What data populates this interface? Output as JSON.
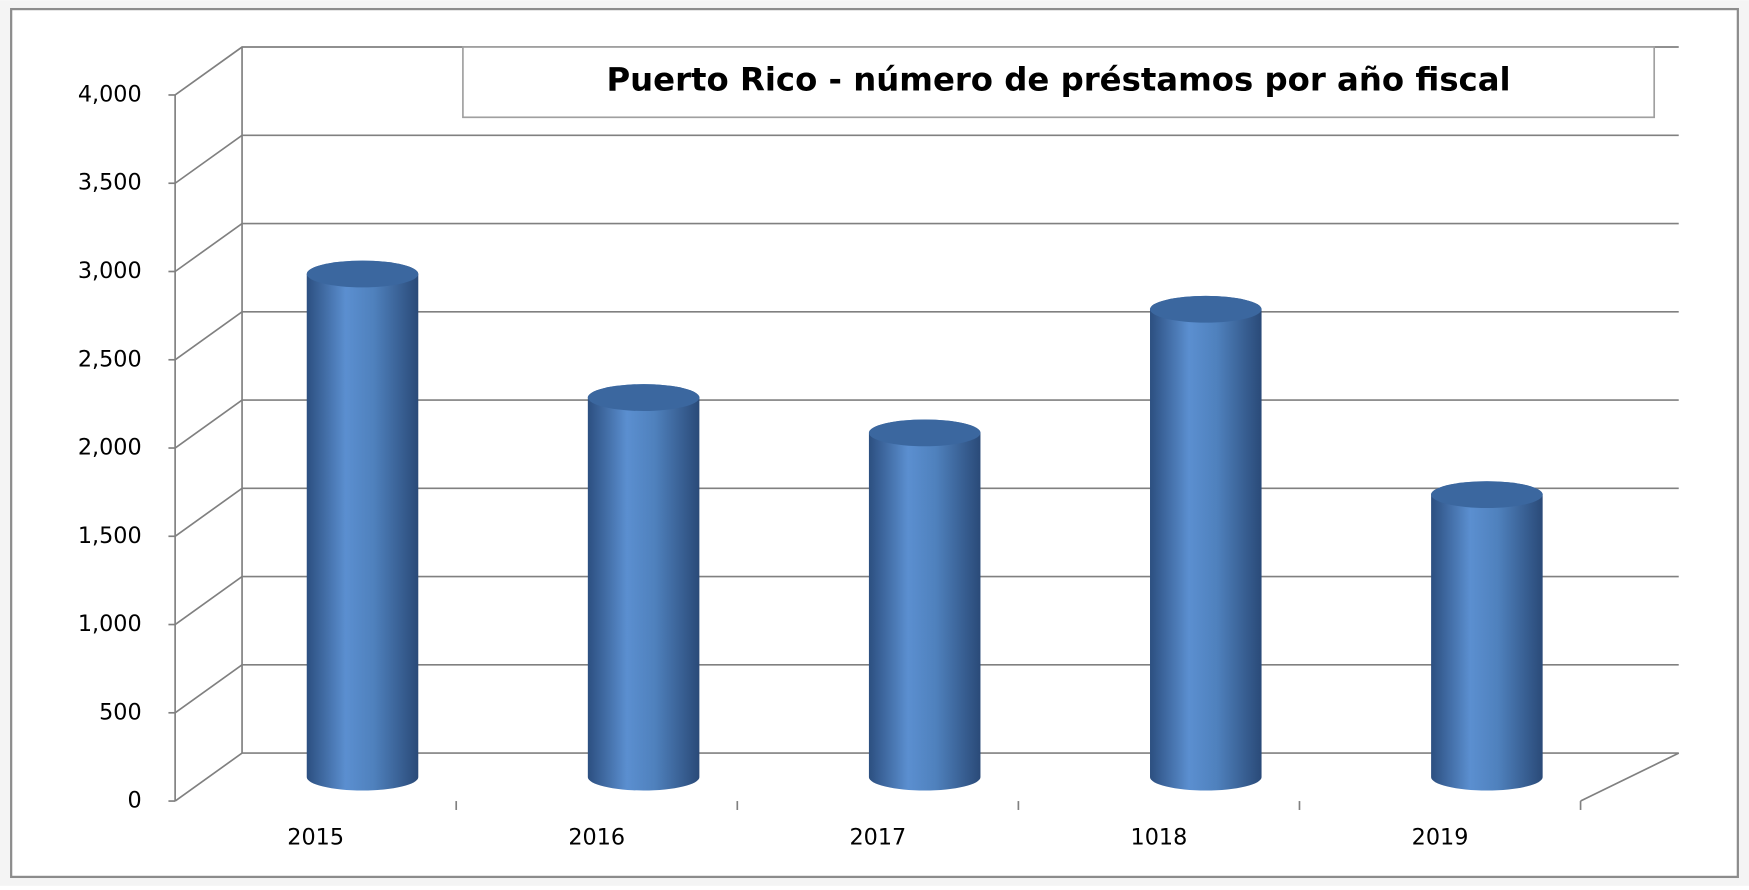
{
  "chart_data": {
    "type": "bar3d",
    "title": "Puerto Rico - número de préstamos por año fiscal",
    "categories": [
      "2015",
      "2016",
      "2017",
      "1018",
      "2019"
    ],
    "values": [
      2850,
      2150,
      1950,
      2650,
      1600
    ],
    "color": "#4f81bd",
    "ylim": [
      0,
      4000
    ],
    "yticks": [
      0,
      500,
      {
        "value": 1000,
        "label": "1,000"
      },
      {
        "value": 1500,
        "label": "1,500"
      },
      {
        "value": 2000,
        "label": "2,000"
      },
      {
        "value": 2500,
        "label": "2,500"
      },
      {
        "value": 3000,
        "label": "3,000"
      },
      {
        "value": 3500,
        "label": "3,500"
      },
      {
        "value": 4000,
        "label": "4,000"
      }
    ],
    "grid": true
  }
}
